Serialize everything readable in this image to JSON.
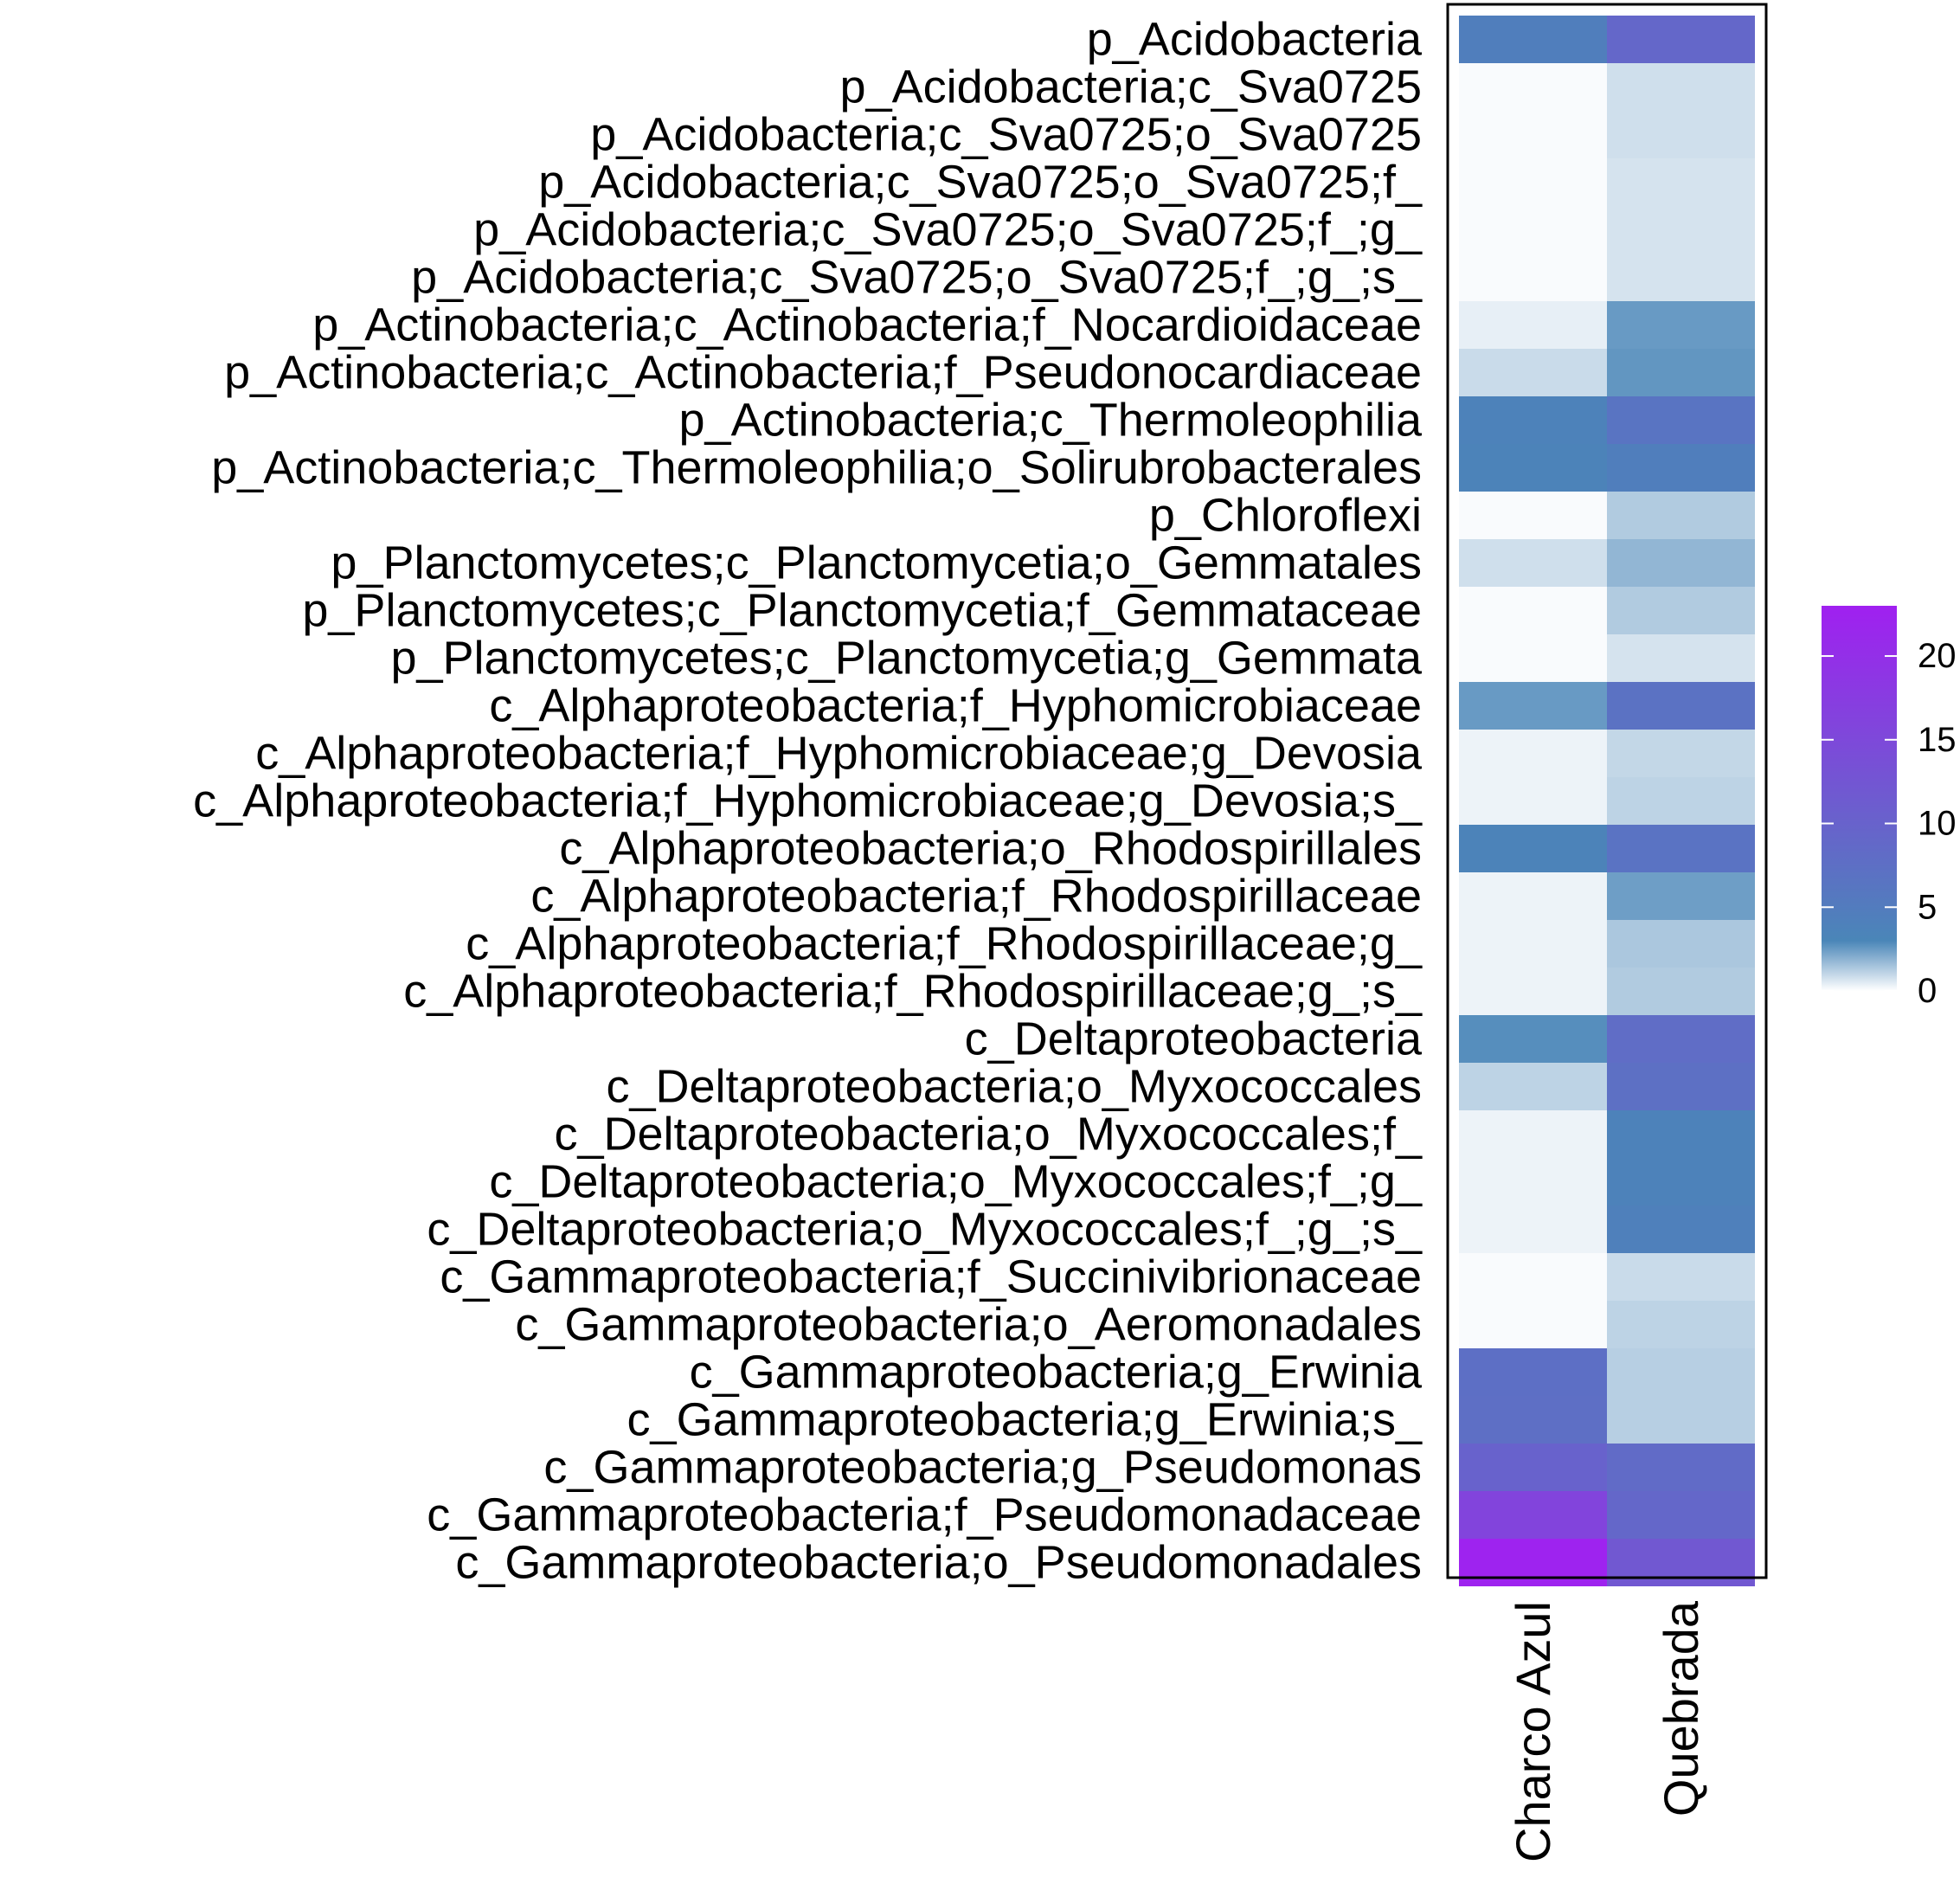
{
  "chart_data": {
    "type": "heatmap",
    "columns": [
      "Charco Azul",
      "Quebrada"
    ],
    "rows": [
      "p_Acidobacteria",
      "p_Acidobacteria;c_Sva0725",
      "p_Acidobacteria;c_Sva0725;o_Sva0725",
      "p_Acidobacteria;c_Sva0725;o_Sva0725;f_",
      "p_Acidobacteria;c_Sva0725;o_Sva0725;f_;g_",
      "p_Acidobacteria;c_Sva0725;o_Sva0725;f_;g_;s_",
      "p_Actinobacteria;c_Actinobacteria;f_Nocardioidaceae",
      "p_Actinobacteria;c_Actinobacteria;f_Pseudonocardiaceae",
      "p_Actinobacteria;c_Thermoleophilia",
      "p_Actinobacteria;c_Thermoleophilia;o_Solirubrobacterales",
      "p_Chloroflexi",
      "p_Planctomycetes;c_Planctomycetia;o_Gemmatales",
      "p_Planctomycetes;c_Planctomycetia;f_Gemmataceae",
      "p_Planctomycetes;c_Planctomycetia;g_Gemmata",
      "c_Alphaproteobacteria;f_Hyphomicrobiaceae",
      "c_Alphaproteobacteria;f_Hyphomicrobiaceae;g_Devosia",
      "c_Alphaproteobacteria;f_Hyphomicrobiaceae;g_Devosia;s_",
      "c_Alphaproteobacteria;o_Rhodospirillales",
      "c_Alphaproteobacteria;f_Rhodospirillaceae",
      "c_Alphaproteobacteria;f_Rhodospirillaceae;g_",
      "c_Alphaproteobacteria;f_Rhodospirillaceae;g_;s_",
      "c_Deltaproteobacteria",
      "c_Deltaproteobacteria;o_Myxococcales",
      "c_Deltaproteobacteria;o_Myxococcales;f_",
      "c_Deltaproteobacteria;o_Myxococcales;f_;g_",
      "c_Deltaproteobacteria;o_Myxococcales;f_;g_;s_",
      "c_Gammaproteobacteria;f_Succinivibrionaceae",
      "c_Gammaproteobacteria;o_Aeromonadales",
      "c_Gammaproteobacteria;g_Erwinia",
      "c_Gammaproteobacteria;g_Erwinia;s_",
      "c_Gammaproteobacteria;g_Pseudomonas",
      "c_Gammaproteobacteria;f_Pseudomonadaceae",
      "c_Gammaproteobacteria;o_Pseudomonadales"
    ],
    "values": [
      [
        4.5,
        9.0
      ],
      [
        0.1,
        0.8
      ],
      [
        0.1,
        0.8
      ],
      [
        0.1,
        0.7
      ],
      [
        0.1,
        0.7
      ],
      [
        0.1,
        0.7
      ],
      [
        0.4,
        2.5
      ],
      [
        0.9,
        2.6
      ],
      [
        3.8,
        6.5
      ],
      [
        3.5,
        4.5
      ],
      [
        0.1,
        1.3
      ],
      [
        0.8,
        1.8
      ],
      [
        0.1,
        1.3
      ],
      [
        0.1,
        0.7
      ],
      [
        2.5,
        7.0
      ],
      [
        0.3,
        1.0
      ],
      [
        0.3,
        1.1
      ],
      [
        3.5,
        6.8
      ],
      [
        0.3,
        2.4
      ],
      [
        0.3,
        1.4
      ],
      [
        0.3,
        1.3
      ],
      [
        2.8,
        8.0
      ],
      [
        1.1,
        7.4
      ],
      [
        0.3,
        3.8
      ],
      [
        0.3,
        3.8
      ],
      [
        0.3,
        4.1
      ],
      [
        0.1,
        0.9
      ],
      [
        0.1,
        1.1
      ],
      [
        7.5,
        1.2
      ],
      [
        7.6,
        1.2
      ],
      [
        10.0,
        8.3
      ],
      [
        16.0,
        9.0
      ],
      [
        22.5,
        12.0
      ]
    ],
    "colorbar": {
      "min": 0,
      "max": 23,
      "ticks": [
        0,
        5,
        10,
        15,
        20
      ],
      "stops": [
        {
          "value": 0,
          "color": "#ffffff"
        },
        {
          "value": 3,
          "color": "#4a86b8"
        },
        {
          "value": 23,
          "color": "#a020f0"
        }
      ]
    },
    "legend_position": "right",
    "title": "",
    "xlabel": "",
    "ylabel": ""
  }
}
